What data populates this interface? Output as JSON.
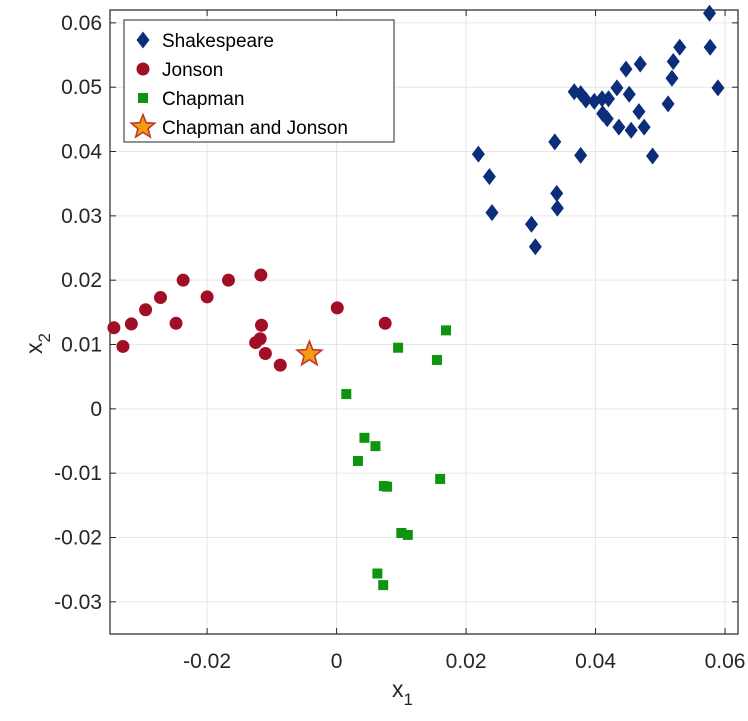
{
  "chart_data": {
    "type": "scatter",
    "xlabel": "x",
    "xlabel_sub": "1",
    "ylabel": "x",
    "ylabel_sub": "2",
    "xlim": [
      -0.035,
      0.062
    ],
    "ylim": [
      -0.035,
      0.062
    ],
    "xticks": [
      -0.02,
      0,
      0.02,
      0.04,
      0.06
    ],
    "xtick_labels": [
      "-0.02",
      "0",
      "0.02",
      "0.04",
      "0.06"
    ],
    "yticks": [
      -0.03,
      -0.02,
      -0.01,
      0,
      0.01,
      0.02,
      0.03,
      0.04,
      0.05,
      0.06
    ],
    "ytick_labels": [
      "-0.03",
      "-0.02",
      "-0.01",
      "0",
      "0.01",
      "0.02",
      "0.03",
      "0.04",
      "0.05",
      "0.06"
    ],
    "grid": true,
    "legend_position": "top-left",
    "series": [
      {
        "name": "Shakespeare",
        "marker": "diamond",
        "color": "#0b2d7a",
        "points": [
          [
            0.0576,
            0.0615
          ],
          [
            0.0577,
            0.0562
          ],
          [
            0.0589,
            0.0499
          ],
          [
            0.053,
            0.0562
          ],
          [
            0.052,
            0.054
          ],
          [
            0.0518,
            0.0514
          ],
          [
            0.0512,
            0.0474
          ],
          [
            0.0469,
            0.0536
          ],
          [
            0.0447,
            0.0528
          ],
          [
            0.0452,
            0.0489
          ],
          [
            0.0467,
            0.0462
          ],
          [
            0.0475,
            0.0438
          ],
          [
            0.0488,
            0.0393
          ],
          [
            0.0455,
            0.0433
          ],
          [
            0.0436,
            0.0438
          ],
          [
            0.0433,
            0.0499
          ],
          [
            0.042,
            0.0482
          ],
          [
            0.041,
            0.0482
          ],
          [
            0.0411,
            0.0459
          ],
          [
            0.0418,
            0.0451
          ],
          [
            0.0398,
            0.0478
          ],
          [
            0.0385,
            0.048
          ],
          [
            0.0377,
            0.049
          ],
          [
            0.0367,
            0.0493
          ],
          [
            0.0377,
            0.0394
          ],
          [
            0.0337,
            0.0415
          ],
          [
            0.0219,
            0.0396
          ],
          [
            0.0236,
            0.0361
          ],
          [
            0.024,
            0.0305
          ],
          [
            0.034,
            0.0335
          ],
          [
            0.0341,
            0.0312
          ],
          [
            0.0301,
            0.0287
          ],
          [
            0.0307,
            0.0252
          ]
        ]
      },
      {
        "name": "Jonson",
        "marker": "circle",
        "color": "#a10f26",
        "points": [
          [
            -0.0344,
            0.0126
          ],
          [
            -0.033,
            0.0097
          ],
          [
            -0.0317,
            0.0132
          ],
          [
            -0.0295,
            0.0154
          ],
          [
            -0.0272,
            0.0173
          ],
          [
            -0.0248,
            0.0133
          ],
          [
            -0.0237,
            0.02
          ],
          [
            -0.02,
            0.0174
          ],
          [
            -0.0167,
            0.02
          ],
          [
            -0.0117,
            0.0208
          ],
          [
            -0.0116,
            0.013
          ],
          [
            -0.0118,
            0.0109
          ],
          [
            -0.0125,
            0.0103
          ],
          [
            -0.011,
            0.0086
          ],
          [
            -0.0087,
            0.0068
          ],
          [
            0.0001,
            0.0157
          ],
          [
            0.0075,
            0.0133
          ]
        ]
      },
      {
        "name": "Chapman",
        "marker": "square",
        "color": "#0f9410",
        "points": [
          [
            0.0169,
            0.0122
          ],
          [
            0.0095,
            0.0095
          ],
          [
            0.0155,
            0.0076
          ],
          [
            0.0015,
            0.0023
          ],
          [
            0.0043,
            -0.0045
          ],
          [
            0.006,
            -0.0058
          ],
          [
            0.0033,
            -0.0081
          ],
          [
            0.0073,
            -0.012
          ],
          [
            0.0078,
            -0.0121
          ],
          [
            0.016,
            -0.0109
          ],
          [
            0.01,
            -0.0193
          ],
          [
            0.011,
            -0.0196
          ],
          [
            0.0063,
            -0.0256
          ],
          [
            0.0072,
            -0.0274
          ]
        ]
      },
      {
        "name": "Chapman and Jonson",
        "marker": "star",
        "color": "#f39c12",
        "edge": "#c0392b",
        "points": [
          [
            -0.0042,
            0.0085
          ]
        ]
      }
    ]
  }
}
